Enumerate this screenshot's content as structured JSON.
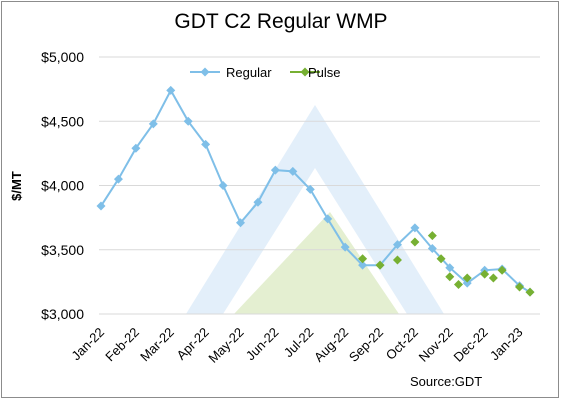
{
  "chart_data": {
    "type": "line",
    "title": "GDT C2 Regular WMP",
    "ylabel": "$/MT",
    "xlabel": "",
    "source": "Source:GDT",
    "ylim": [
      3000,
      5000
    ],
    "yticks": [
      3000,
      3500,
      4000,
      4500,
      5000
    ],
    "ytick_labels": [
      "$3,000",
      "$3,500",
      "$4,000",
      "$4,500",
      "$5,000"
    ],
    "x_range": [
      0,
      12.3
    ],
    "xticks": [
      {
        "label": "Jan-22",
        "x": 0
      },
      {
        "label": "Feb-22",
        "x": 1
      },
      {
        "label": "Mar-22",
        "x": 2
      },
      {
        "label": "Apr-22",
        "x": 3
      },
      {
        "label": "May-22",
        "x": 4
      },
      {
        "label": "Jun-22",
        "x": 5
      },
      {
        "label": "Jul-22",
        "x": 6
      },
      {
        "label": "Aug-22",
        "x": 7
      },
      {
        "label": "Sep-22",
        "x": 8
      },
      {
        "label": "Oct-22",
        "x": 9
      },
      {
        "label": "Nov-22",
        "x": 10
      },
      {
        "label": "Dec-22",
        "x": 11
      },
      {
        "label": "Jan-23",
        "x": 12
      }
    ],
    "grid": true,
    "legend_position": "top",
    "series": [
      {
        "name": "Regular",
        "color": "#7fbfe8",
        "connected": true,
        "points": [
          [
            0.0,
            3840
          ],
          [
            0.5,
            4050
          ],
          [
            1.0,
            4290
          ],
          [
            1.5,
            4480
          ],
          [
            2.0,
            4740
          ],
          [
            2.5,
            4500
          ],
          [
            3.0,
            4320
          ],
          [
            3.5,
            4000
          ],
          [
            4.0,
            3710
          ],
          [
            4.5,
            3870
          ],
          [
            5.0,
            4120
          ],
          [
            5.5,
            4110
          ],
          [
            6.0,
            3970
          ],
          [
            6.5,
            3740
          ],
          [
            7.0,
            3520
          ],
          [
            7.5,
            3380
          ],
          [
            8.0,
            3380
          ],
          [
            8.5,
            3540
          ],
          [
            9.0,
            3670
          ],
          [
            9.5,
            3510
          ],
          [
            10.0,
            3360
          ],
          [
            10.5,
            3240
          ],
          [
            11.0,
            3340
          ],
          [
            11.5,
            3350
          ],
          [
            12.0,
            3220
          ],
          [
            12.3,
            3170
          ]
        ]
      },
      {
        "name": "Pulse",
        "color": "#77b032",
        "connected": false,
        "points": [
          [
            7.5,
            3430
          ],
          [
            8.0,
            3380
          ],
          [
            8.5,
            3420
          ],
          [
            9.0,
            3560
          ],
          [
            9.5,
            3610
          ],
          [
            9.75,
            3430
          ],
          [
            10.0,
            3290
          ],
          [
            10.25,
            3230
          ],
          [
            10.5,
            3280
          ],
          [
            11.0,
            3310
          ],
          [
            11.25,
            3280
          ],
          [
            11.5,
            3340
          ],
          [
            12.0,
            3210
          ],
          [
            12.3,
            3170
          ]
        ]
      }
    ]
  }
}
